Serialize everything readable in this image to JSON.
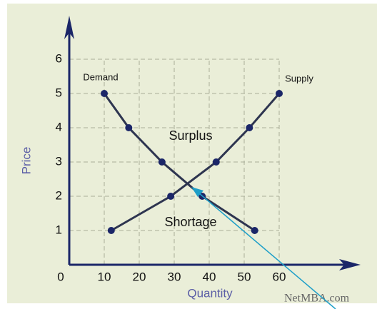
{
  "chart_data": {
    "type": "line",
    "xlabel": "Quantity",
    "ylabel": "Price",
    "xlim": [
      0,
      80
    ],
    "ylim": [
      0,
      7
    ],
    "xticks": [
      0,
      10,
      20,
      30,
      40,
      50,
      60
    ],
    "yticks": [
      1,
      2,
      3,
      4,
      5,
      6
    ],
    "grid": true,
    "series": [
      {
        "name": "Demand",
        "color": "#2e3550",
        "x": [
          10,
          17,
          26.5,
          38,
          53
        ],
        "values": [
          5,
          4,
          3,
          2,
          1
        ]
      },
      {
        "name": "Supply",
        "color": "#2e3550",
        "x": [
          12,
          29,
          42,
          51.5,
          60
        ],
        "values": [
          1,
          2,
          3,
          4,
          5
        ]
      }
    ],
    "annotations": [
      "Surplus",
      "Shortage"
    ],
    "watermark": "NetMBA.com"
  }
}
